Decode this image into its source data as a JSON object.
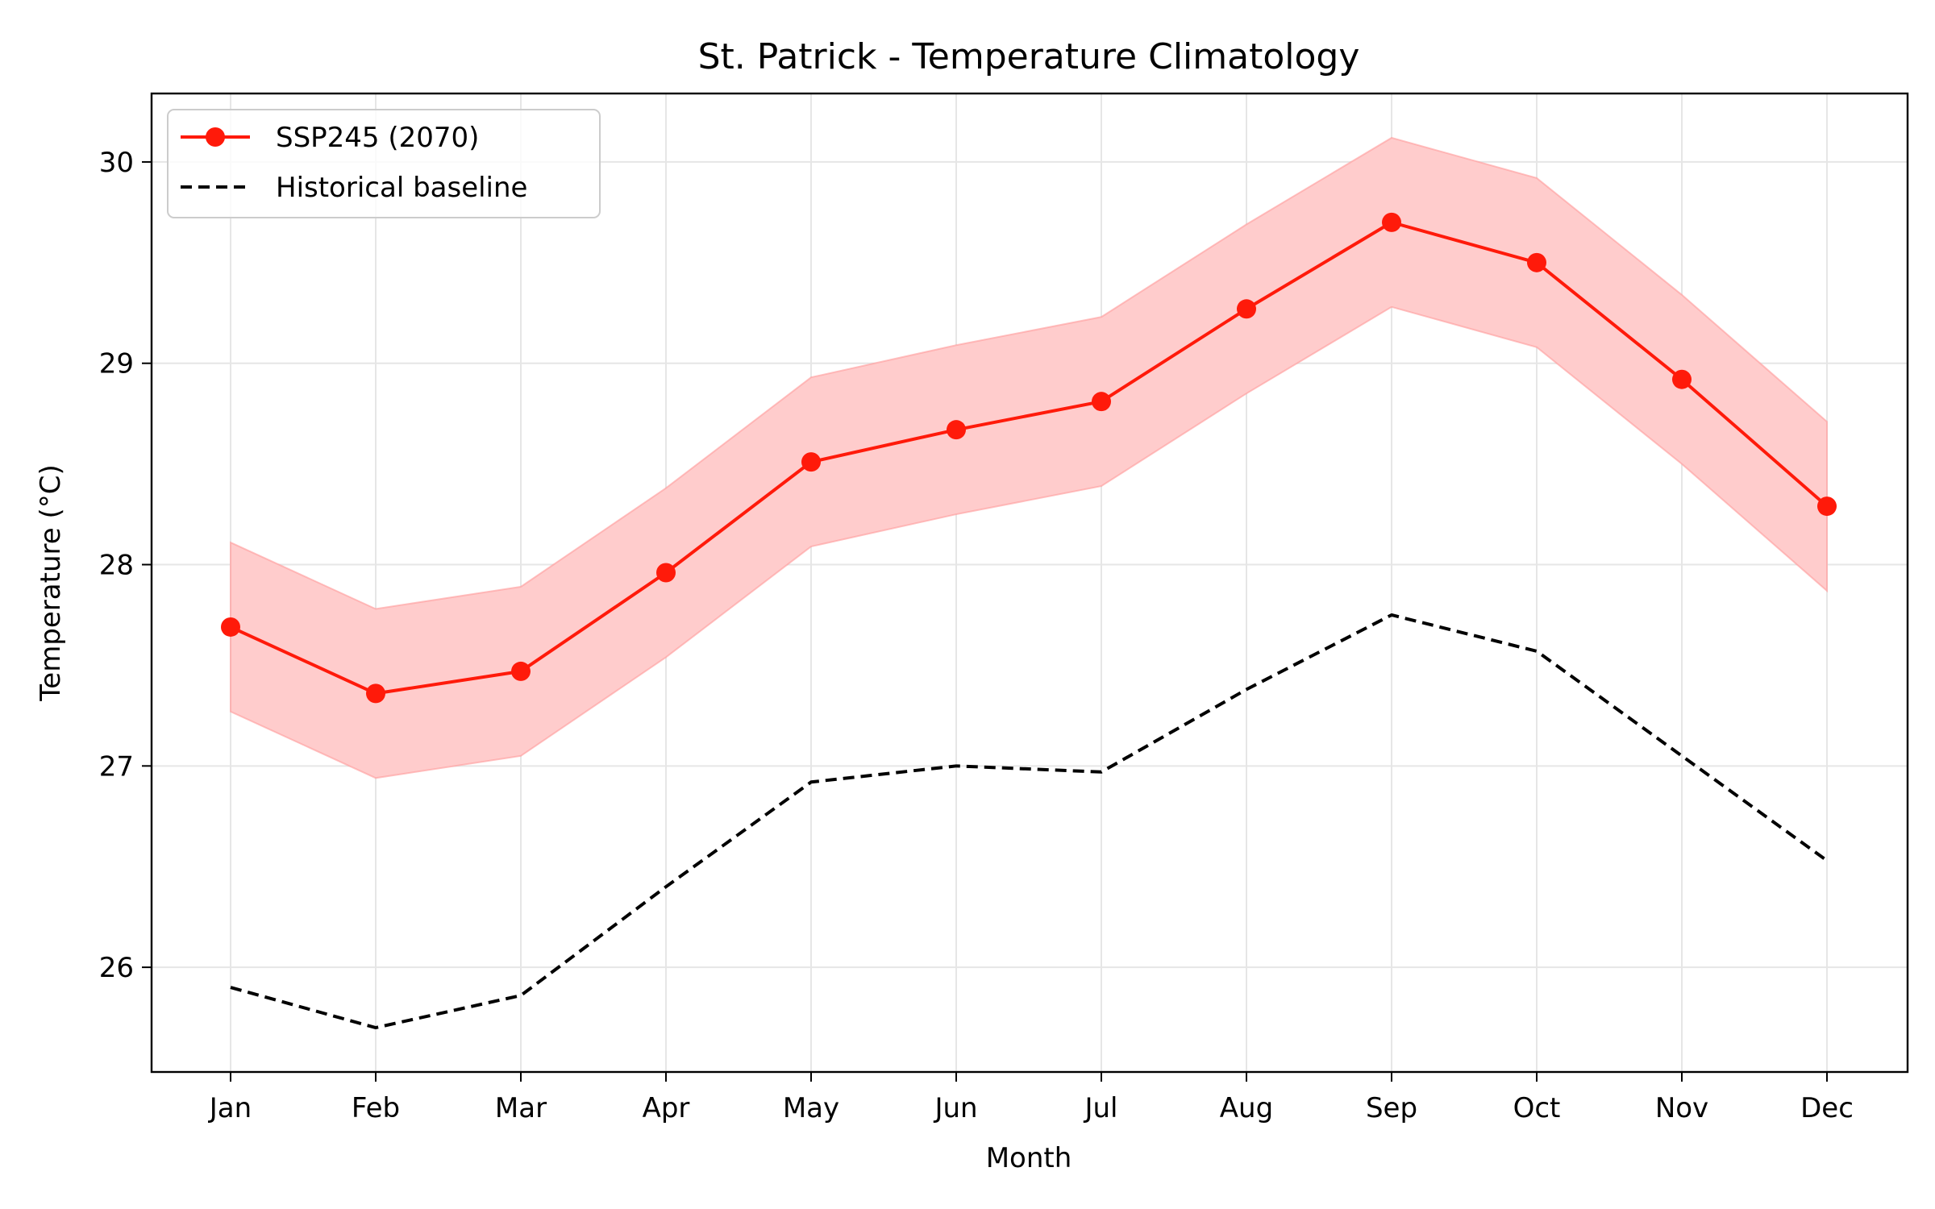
{
  "chart_data": {
    "type": "line",
    "title": "St. Patrick - Temperature Climatology",
    "xlabel": "Month",
    "ylabel": "Temperature (°C)",
    "categories": [
      "Jan",
      "Feb",
      "Mar",
      "Apr",
      "May",
      "Jun",
      "Jul",
      "Aug",
      "Sep",
      "Oct",
      "Nov",
      "Dec"
    ],
    "ylim": [
      25.48,
      30.34
    ],
    "yticks": [
      26,
      27,
      28,
      29,
      30
    ],
    "grid": true,
    "legend_position": "top-left",
    "series": [
      {
        "name": "SSP245 (2070)",
        "style": "solid-with-markers",
        "color": "#ff1a0a",
        "values": [
          27.69,
          27.36,
          27.47,
          27.96,
          28.51,
          28.67,
          28.81,
          29.27,
          29.7,
          29.5,
          28.92,
          28.29
        ],
        "band_lower": [
          27.27,
          26.94,
          27.05,
          27.54,
          28.09,
          28.25,
          28.39,
          28.85,
          29.28,
          29.08,
          28.5,
          27.87
        ],
        "band_upper": [
          28.11,
          27.78,
          27.89,
          28.38,
          28.93,
          29.09,
          29.23,
          29.69,
          30.12,
          29.92,
          29.34,
          28.71
        ],
        "band_color": "#ffcccc"
      },
      {
        "name": "Historical baseline",
        "style": "dashed",
        "color": "#000000",
        "values": [
          25.9,
          25.7,
          25.86,
          26.4,
          26.92,
          27.0,
          26.97,
          27.38,
          27.75,
          27.57,
          27.05,
          26.53
        ]
      }
    ]
  }
}
